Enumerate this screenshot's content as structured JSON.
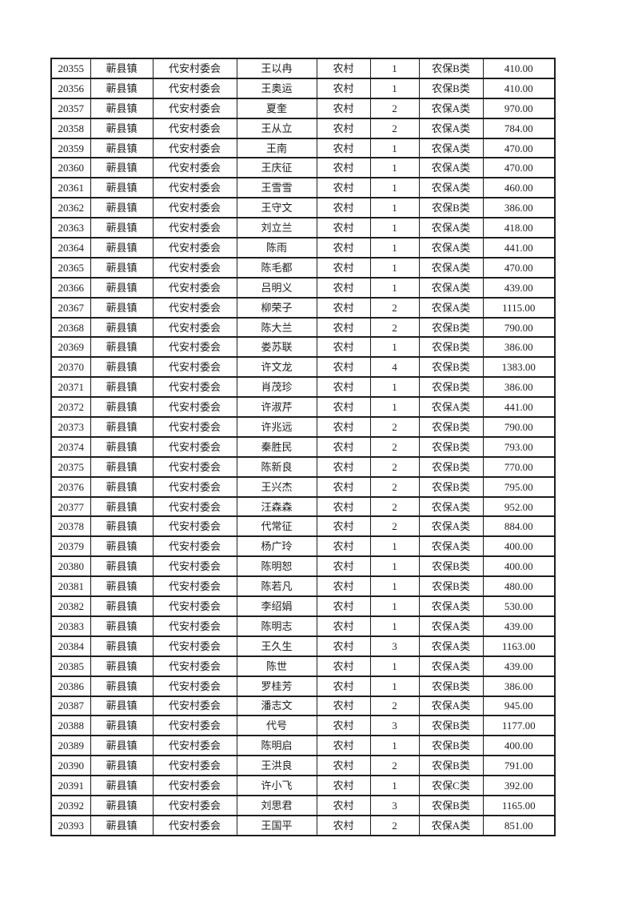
{
  "page": {
    "background": "#ffffff"
  },
  "colors": {
    "border": "#1e1e1e",
    "text": "#1e1e1e"
  },
  "table": {
    "rows": [
      [
        "20355",
        "蕲县镇",
        "代安村委会",
        "王以冉",
        "农村",
        "1",
        "农保B类",
        "410.00"
      ],
      [
        "20356",
        "蕲县镇",
        "代安村委会",
        "王奥运",
        "农村",
        "1",
        "农保B类",
        "410.00"
      ],
      [
        "20357",
        "蕲县镇",
        "代安村委会",
        "夏奎",
        "农村",
        "2",
        "农保A类",
        "970.00"
      ],
      [
        "20358",
        "蕲县镇",
        "代安村委会",
        "王从立",
        "农村",
        "2",
        "农保A类",
        "784.00"
      ],
      [
        "20359",
        "蕲县镇",
        "代安村委会",
        "王南",
        "农村",
        "1",
        "农保A类",
        "470.00"
      ],
      [
        "20360",
        "蕲县镇",
        "代安村委会",
        "王庆征",
        "农村",
        "1",
        "农保A类",
        "470.00"
      ],
      [
        "20361",
        "蕲县镇",
        "代安村委会",
        "王雪雪",
        "农村",
        "1",
        "农保A类",
        "460.00"
      ],
      [
        "20362",
        "蕲县镇",
        "代安村委会",
        "王守文",
        "农村",
        "1",
        "农保B类",
        "386.00"
      ],
      [
        "20363",
        "蕲县镇",
        "代安村委会",
        "刘立兰",
        "农村",
        "1",
        "农保A类",
        "418.00"
      ],
      [
        "20364",
        "蕲县镇",
        "代安村委会",
        "陈雨",
        "农村",
        "1",
        "农保A类",
        "441.00"
      ],
      [
        "20365",
        "蕲县镇",
        "代安村委会",
        "陈毛都",
        "农村",
        "1",
        "农保A类",
        "470.00"
      ],
      [
        "20366",
        "蕲县镇",
        "代安村委会",
        "吕明义",
        "农村",
        "1",
        "农保A类",
        "439.00"
      ],
      [
        "20367",
        "蕲县镇",
        "代安村委会",
        "柳荣子",
        "农村",
        "2",
        "农保A类",
        "1115.00"
      ],
      [
        "20368",
        "蕲县镇",
        "代安村委会",
        "陈大兰",
        "农村",
        "2",
        "农保B类",
        "790.00"
      ],
      [
        "20369",
        "蕲县镇",
        "代安村委会",
        "娄苏联",
        "农村",
        "1",
        "农保B类",
        "386.00"
      ],
      [
        "20370",
        "蕲县镇",
        "代安村委会",
        "许文龙",
        "农村",
        "4",
        "农保B类",
        "1383.00"
      ],
      [
        "20371",
        "蕲县镇",
        "代安村委会",
        "肖茂珍",
        "农村",
        "1",
        "农保B类",
        "386.00"
      ],
      [
        "20372",
        "蕲县镇",
        "代安村委会",
        "许淑芹",
        "农村",
        "1",
        "农保A类",
        "441.00"
      ],
      [
        "20373",
        "蕲县镇",
        "代安村委会",
        "许兆远",
        "农村",
        "2",
        "农保B类",
        "790.00"
      ],
      [
        "20374",
        "蕲县镇",
        "代安村委会",
        "秦胜民",
        "农村",
        "2",
        "农保B类",
        "793.00"
      ],
      [
        "20375",
        "蕲县镇",
        "代安村委会",
        "陈新良",
        "农村",
        "2",
        "农保B类",
        "770.00"
      ],
      [
        "20376",
        "蕲县镇",
        "代安村委会",
        "王兴杰",
        "农村",
        "2",
        "农保B类",
        "795.00"
      ],
      [
        "20377",
        "蕲县镇",
        "代安村委会",
        "汪森森",
        "农村",
        "2",
        "农保A类",
        "952.00"
      ],
      [
        "20378",
        "蕲县镇",
        "代安村委会",
        "代常征",
        "农村",
        "2",
        "农保A类",
        "884.00"
      ],
      [
        "20379",
        "蕲县镇",
        "代安村委会",
        "杨广玲",
        "农村",
        "1",
        "农保A类",
        "400.00"
      ],
      [
        "20380",
        "蕲县镇",
        "代安村委会",
        "陈明恕",
        "农村",
        "1",
        "农保B类",
        "400.00"
      ],
      [
        "20381",
        "蕲县镇",
        "代安村委会",
        "陈若凡",
        "农村",
        "1",
        "农保B类",
        "480.00"
      ],
      [
        "20382",
        "蕲县镇",
        "代安村委会",
        "李绍娟",
        "农村",
        "1",
        "农保A类",
        "530.00"
      ],
      [
        "20383",
        "蕲县镇",
        "代安村委会",
        "陈明志",
        "农村",
        "1",
        "农保A类",
        "439.00"
      ],
      [
        "20384",
        "蕲县镇",
        "代安村委会",
        "王久生",
        "农村",
        "3",
        "农保A类",
        "1163.00"
      ],
      [
        "20385",
        "蕲县镇",
        "代安村委会",
        "陈世",
        "农村",
        "1",
        "农保A类",
        "439.00"
      ],
      [
        "20386",
        "蕲县镇",
        "代安村委会",
        "罗桂芳",
        "农村",
        "1",
        "农保B类",
        "386.00"
      ],
      [
        "20387",
        "蕲县镇",
        "代安村委会",
        "潘志文",
        "农村",
        "2",
        "农保A类",
        "945.00"
      ],
      [
        "20388",
        "蕲县镇",
        "代安村委会",
        "代号",
        "农村",
        "3",
        "农保B类",
        "1177.00"
      ],
      [
        "20389",
        "蕲县镇",
        "代安村委会",
        "陈明启",
        "农村",
        "1",
        "农保B类",
        "400.00"
      ],
      [
        "20390",
        "蕲县镇",
        "代安村委会",
        "王洪良",
        "农村",
        "2",
        "农保B类",
        "791.00"
      ],
      [
        "20391",
        "蕲县镇",
        "代安村委会",
        "许小飞",
        "农村",
        "1",
        "农保C类",
        "392.00"
      ],
      [
        "20392",
        "蕲县镇",
        "代安村委会",
        "刘思君",
        "农村",
        "3",
        "农保B类",
        "1165.00"
      ],
      [
        "20393",
        "蕲县镇",
        "代安村委会",
        "王国平",
        "农村",
        "2",
        "农保A类",
        "851.00"
      ]
    ]
  }
}
